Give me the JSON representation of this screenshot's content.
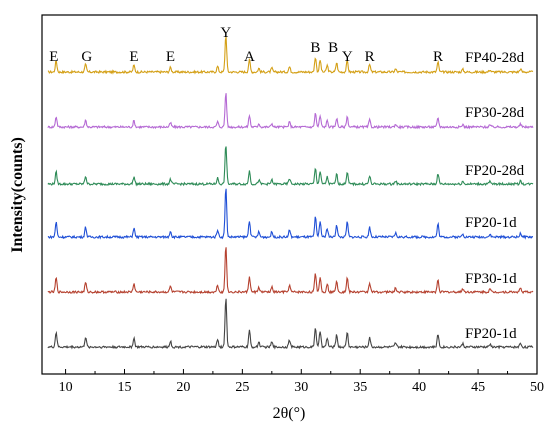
{
  "chart_data": {
    "type": "line",
    "xlabel": "2θ(°)",
    "ylabel": "Intensity(counts)",
    "xlim": [
      8,
      50
    ],
    "x_ticks": [
      10,
      15,
      20,
      25,
      30,
      35,
      40,
      45,
      50
    ],
    "grid": false,
    "peaks": [
      {
        "position": 9.2,
        "relative_height": 0.3
      },
      {
        "position": 11.7,
        "relative_height": 0.2
      },
      {
        "position": 15.8,
        "relative_height": 0.18
      },
      {
        "position": 18.9,
        "relative_height": 0.12
      },
      {
        "position": 22.9,
        "relative_height": 0.15
      },
      {
        "position": 23.6,
        "relative_height": 1.0
      },
      {
        "position": 25.6,
        "relative_height": 0.33
      },
      {
        "position": 26.4,
        "relative_height": 0.1
      },
      {
        "position": 27.5,
        "relative_height": 0.1
      },
      {
        "position": 29.0,
        "relative_height": 0.14
      },
      {
        "position": 31.2,
        "relative_height": 0.4
      },
      {
        "position": 31.6,
        "relative_height": 0.32
      },
      {
        "position": 32.2,
        "relative_height": 0.18
      },
      {
        "position": 33.0,
        "relative_height": 0.25
      },
      {
        "position": 33.9,
        "relative_height": 0.3
      },
      {
        "position": 35.8,
        "relative_height": 0.2
      },
      {
        "position": 38.0,
        "relative_height": 0.08
      },
      {
        "position": 41.6,
        "relative_height": 0.26
      },
      {
        "position": 43.7,
        "relative_height": 0.07
      },
      {
        "position": 46.0,
        "relative_height": 0.06
      },
      {
        "position": 48.6,
        "relative_height": 0.08
      }
    ],
    "series": [
      {
        "name": "FP40-28d",
        "color": "#d4a017",
        "amplitude": 0.75
      },
      {
        "name": "FP30-28d",
        "color": "#b56ad4",
        "amplitude": 0.7
      },
      {
        "name": "FP20-28d",
        "color": "#2e8b57",
        "amplitude": 0.8
      },
      {
        "name": "FP20-1d",
        "color": "#1f4fd6",
        "amplitude": 1.0
      },
      {
        "name": "FP30-1d",
        "color": "#b5412f",
        "amplitude": 0.95
      },
      {
        "name": "FP20-1d",
        "color": "#444444",
        "amplitude": 1.0
      }
    ],
    "phase_labels": [
      {
        "text": "E",
        "x": 9.0
      },
      {
        "text": "G",
        "x": 11.8
      },
      {
        "text": "E",
        "x": 15.8
      },
      {
        "text": "E",
        "x": 18.9
      },
      {
        "text": "Y",
        "x": 23.6
      },
      {
        "text": "A",
        "x": 25.6
      },
      {
        "text": "B",
        "x": 31.2
      },
      {
        "text": "B",
        "x": 32.7
      },
      {
        "text": "Y",
        "x": 33.9
      },
      {
        "text": "R",
        "x": 35.8
      },
      {
        "text": "R",
        "x": 41.6
      }
    ]
  }
}
